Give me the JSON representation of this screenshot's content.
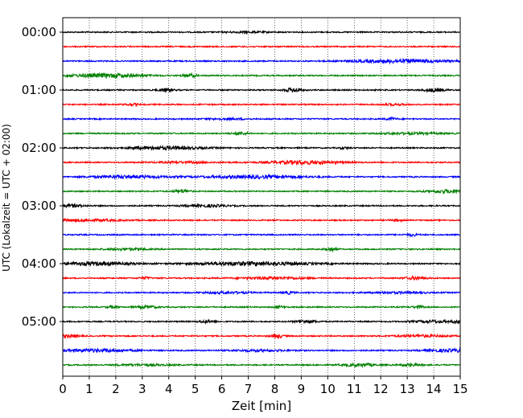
{
  "chart_data": {
    "type": "line",
    "title": "",
    "xlabel": "Zeit  [min]",
    "ylabel": "UTC (Lokalzeit = UTC + 02:00)",
    "xlim": [
      0,
      15
    ],
    "xticks": [
      "0",
      "1",
      "2",
      "3",
      "4",
      "5",
      "6",
      "7",
      "8",
      "9",
      "10",
      "11",
      "12",
      "13",
      "14",
      "15"
    ],
    "ytick_labels": [
      "00:00",
      "01:00",
      "02:00",
      "03:00",
      "04:00",
      "05:00"
    ],
    "trace_interval_min": 15,
    "trace_count": 24,
    "trace_colors": [
      "#000000",
      "#ff0000",
      "#0000ff",
      "#008000"
    ],
    "grid": "vertical dotted",
    "events": [
      [
        [
          6.9,
          0.8,
          0.6
        ]
      ],
      [],
      [
        [
          12.8,
          1.8,
          2.0
        ]
      ],
      [
        [
          1.6,
          1.4,
          2.2
        ],
        [
          4.8,
          0.3,
          1.6
        ]
      ],
      [
        [
          3.9,
          0.3,
          1.8
        ],
        [
          8.7,
          0.3,
          2.6
        ],
        [
          14.0,
          0.4,
          1.8
        ]
      ],
      [
        [
          2.6,
          0.3,
          0.9
        ],
        [
          12.5,
          0.5,
          0.8
        ]
      ],
      [
        [
          6.2,
          0.8,
          0.8
        ],
        [
          12.4,
          0.2,
          1.3
        ]
      ],
      [
        [
          6.7,
          0.3,
          1.4
        ],
        [
          13.2,
          1.2,
          0.9
        ]
      ],
      [
        [
          3.9,
          1.5,
          1.7
        ],
        [
          10.6,
          0.2,
          0.9
        ]
      ],
      [
        [
          4.6,
          1.2,
          0.8
        ],
        [
          9.1,
          1.3,
          2.0
        ]
      ],
      [
        [
          2.5,
          1.4,
          1.5
        ],
        [
          7.2,
          2.0,
          1.6
        ]
      ],
      [
        [
          4.5,
          0.3,
          2.0
        ],
        [
          14.6,
          0.8,
          1.8
        ]
      ],
      [
        [
          0.4,
          0.4,
          1.6
        ],
        [
          5.4,
          0.8,
          1.3
        ]
      ],
      [
        [
          0.6,
          1.5,
          1.2
        ],
        [
          12.6,
          0.2,
          1.0
        ]
      ],
      [
        [
          13.2,
          0.2,
          1.4
        ]
      ],
      [
        [
          2.4,
          0.8,
          1.0
        ],
        [
          10.1,
          0.2,
          2.4
        ]
      ],
      [
        [
          1.3,
          1.4,
          1.8
        ],
        [
          7.2,
          2.2,
          2.0
        ]
      ],
      [
        [
          3.1,
          0.2,
          1.2
        ],
        [
          8.0,
          1.2,
          1.3
        ],
        [
          13.3,
          0.4,
          1.6
        ]
      ],
      [
        [
          6.2,
          0.9,
          1.0
        ],
        [
          8.5,
          0.2,
          1.6
        ],
        [
          12.7,
          1.0,
          0.9
        ]
      ],
      [
        [
          1.9,
          0.2,
          1.3
        ],
        [
          3.2,
          0.4,
          1.4
        ],
        [
          8.2,
          0.2,
          1.2
        ],
        [
          13.4,
          0.2,
          1.6
        ]
      ],
      [
        [
          5.4,
          0.3,
          1.3
        ],
        [
          9.2,
          0.4,
          1.4
        ],
        [
          14.0,
          0.8,
          1.2
        ],
        [
          14.9,
          0.2,
          1.4
        ]
      ],
      [
        [
          0.2,
          0.4,
          1.6
        ],
        [
          8.1,
          0.2,
          2.3
        ],
        [
          13.6,
          1.0,
          1.2
        ]
      ],
      [
        [
          1.2,
          1.4,
          1.6
        ],
        [
          7.4,
          1.0,
          1.0
        ],
        [
          14.2,
          0.6,
          1.3
        ],
        [
          14.9,
          0.3,
          1.4
        ]
      ],
      [
        [
          3.0,
          1.0,
          0.9
        ],
        [
          11.2,
          0.6,
          1.6
        ],
        [
          13.1,
          0.4,
          1.3
        ]
      ]
    ]
  }
}
